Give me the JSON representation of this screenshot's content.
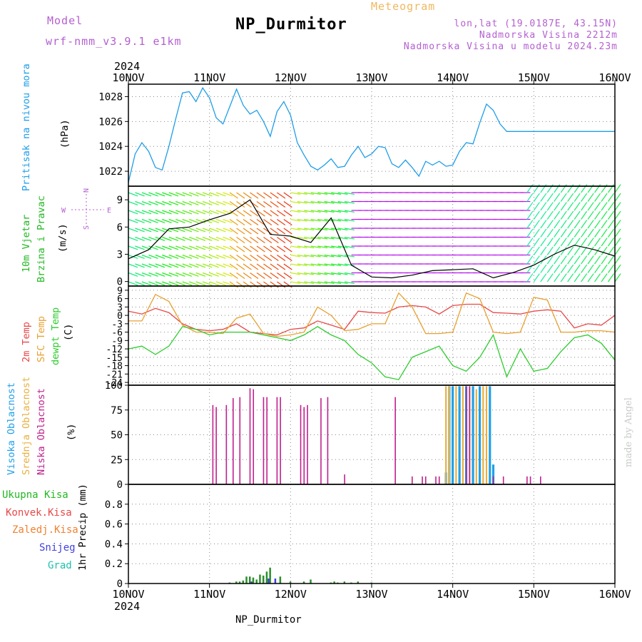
{
  "header": {
    "model_label": "Model",
    "model_name": "wrf-nmm_v3.9.1 e1km",
    "title": "NP_Durmitor",
    "meteogram_label": "Meteogram",
    "coords": "lon,lat (19.0187E, 43.15N)",
    "elevation": "Nadmorska Visina 2212m",
    "model_elevation": "Nadmorska Visina u modelu 2024.23m"
  },
  "footer": {
    "station": "NP_Durmitor",
    "credit": "made by Angel"
  },
  "colors": {
    "pressure": "#1e9ee8",
    "wind_label": "#22b822",
    "temp2m": "#e84848",
    "sfc_temp": "#e8a030",
    "dewpt": "#2ccc2c",
    "high_cloud": "#20a0e8",
    "mid_cloud": "#e8b040",
    "low_cloud": "#c0208e",
    "total_precip": "#2a8f2a",
    "conv_precip": "#e84848",
    "freezing": "#f08030",
    "snow": "#4040e0",
    "graupel": "#20c0b0",
    "purple": "#b45fd0"
  },
  "chart_data": [
    {
      "panel": "pressure",
      "type": "line",
      "ylabel_left": "Pritisak na nivou mora",
      "ylabel_unit": "(hPa)",
      "x_axis_days": [
        "10NOV",
        "11NOV",
        "12NOV",
        "13NOV",
        "14NOV",
        "15NOV",
        "16NOV"
      ],
      "year": "2024",
      "ylim": [
        1020.8,
        1029.0
      ],
      "yticks": [
        "1022",
        "1024",
        "1026",
        "1028"
      ],
      "x_hours": [
        0,
        2,
        4,
        6,
        8,
        10,
        12,
        14,
        16,
        18,
        20,
        22,
        24,
        26,
        28,
        30,
        32,
        34,
        36,
        38,
        40,
        42,
        44,
        46,
        48,
        50,
        52,
        54,
        56,
        58,
        60,
        62,
        64,
        66,
        68,
        70,
        72,
        74,
        76,
        78,
        80,
        82,
        84,
        86,
        88,
        90,
        92,
        94,
        96,
        98,
        100,
        102,
        104,
        106,
        108,
        110,
        112,
        114,
        116,
        118,
        120,
        122,
        124,
        126,
        128,
        130,
        132,
        134,
        136,
        138,
        140,
        142,
        144
      ],
      "series": [
        {
          "name": "Pritisak na nivou mora",
          "values": [
            1021.1,
            1023.4,
            1024.3,
            1023.6,
            1022.3,
            1022.1,
            1024.0,
            1026.2,
            1028.3,
            1028.4,
            1027.6,
            1028.7,
            1027.9,
            1026.3,
            1025.8,
            1027.2,
            1028.6,
            1027.3,
            1026.6,
            1026.9,
            1026.0,
            1024.8,
            1026.8,
            1027.6,
            1026.5,
            1024.3,
            1023.3,
            1022.4,
            1022.1,
            1022.5,
            1023.0,
            1022.3,
            1022.4,
            1023.3,
            1024.0,
            1023.1,
            1023.4,
            1024.0,
            1023.9,
            1022.6,
            1022.3,
            1022.9,
            1022.3,
            1021.6,
            1022.8,
            1022.5,
            1022.8,
            1022.4,
            1022.5,
            1023.6,
            1024.3,
            1024.2,
            1025.9,
            1027.4,
            1026.9,
            1025.8,
            1025.2,
            1025.2,
            1025.2,
            1025.2,
            1025.2,
            1025.2,
            1025.2,
            1025.2,
            1025.2,
            1025.2,
            1025.2,
            1025.2,
            1025.2,
            1025.2,
            1025.2,
            1025.2,
            1025.2
          ]
        }
      ]
    },
    {
      "panel": "wind",
      "type": "line",
      "ylabel_left": "10m Vjetar",
      "ylabel_left2": "Brzina i Pravac",
      "ylabel_unit": "(m/s)",
      "compass": [
        "N",
        "W",
        "E",
        "S"
      ],
      "ylim": [
        -0.5,
        10.5
      ],
      "yticks": [
        "0",
        "3",
        "6",
        "9"
      ],
      "x_hours": [
        0,
        6,
        12,
        18,
        24,
        30,
        36,
        42,
        48,
        54,
        60,
        66,
        72,
        78,
        84,
        90,
        96,
        102,
        108,
        114,
        120,
        126,
        132,
        138,
        144
      ],
      "series": [
        {
          "name": "",
          "values": [
            2.5,
            3.5,
            5.8,
            6.0,
            6.8,
            7.5,
            9.0,
            5.2,
            5.0,
            4.3,
            7.0,
            1.8,
            0.5,
            0.4,
            0.7,
            1.2,
            1.3,
            1.4,
            0.4,
            1.0,
            1.8,
            3.0,
            4.0,
            3.5,
            2.8
          ]
        }
      ]
    },
    {
      "panel": "temperature",
      "type": "line",
      "ylabel_left": [
        "2m Temp",
        "SFC Temp",
        "dewpt Temp"
      ],
      "ylabel_unit": "(C)",
      "ylim": [
        -25,
        10.5
      ],
      "yticks": [
        "9",
        "6",
        "3",
        "0",
        "-3",
        "-6",
        "-9",
        "-12",
        "-15",
        "-18",
        "-21",
        "-24"
      ],
      "x_hours": [
        0,
        4,
        8,
        12,
        16,
        20,
        24,
        28,
        32,
        36,
        40,
        44,
        48,
        52,
        56,
        60,
        64,
        68,
        72,
        76,
        80,
        84,
        88,
        92,
        96,
        100,
        104,
        108,
        112,
        116,
        120,
        124,
        128,
        132,
        136,
        140,
        144
      ],
      "series": [
        {
          "name": "2m Temp",
          "values": [
            1.5,
            0.5,
            2.5,
            1.0,
            -3.0,
            -5.0,
            -5.5,
            -5.0,
            -3.0,
            -6.0,
            -6.5,
            -7.0,
            -5.0,
            -4.5,
            -2.0,
            -3.5,
            -5.0,
            1.5,
            1.0,
            0.8,
            3.0,
            3.5,
            3.0,
            0.5,
            3.5,
            4.0,
            4.0,
            1.0,
            0.8,
            0.5,
            1.5,
            2.0,
            1.5,
            -4.5,
            -3.0,
            -3.5,
            0.0
          ]
        },
        {
          "name": "SFC Temp",
          "values": [
            -2.0,
            -2.0,
            7.5,
            5.0,
            -3.5,
            -6.0,
            -6.0,
            -6.5,
            -1.0,
            0.5,
            -6.5,
            -7.5,
            -7.0,
            -6.0,
            3.0,
            0.0,
            -5.5,
            -5.0,
            -3.0,
            -3.0,
            8.0,
            3.0,
            -6.5,
            -6.5,
            -6.0,
            8.0,
            6.0,
            -6.0,
            -6.5,
            -6.0,
            6.5,
            5.5,
            -6.0,
            -6.0,
            -5.5,
            -5.5,
            -6.0
          ]
        },
        {
          "name": "dewpt Temp",
          "values": [
            -12,
            -11,
            -14,
            -11,
            -4,
            -5,
            -7,
            -6,
            -6,
            -6,
            -7,
            -8,
            -9,
            -7,
            -4,
            -7,
            -9,
            -14,
            -17,
            -22,
            -23,
            -15,
            -13,
            -11,
            -18,
            -20,
            -15,
            -7,
            -22,
            -12,
            -20,
            -19,
            -13,
            -8,
            -7,
            -10,
            -16
          ]
        }
      ]
    },
    {
      "panel": "clouds",
      "type": "bar",
      "ylabel_left": [
        "Visoka Oblacnost",
        "Srednja Oblacnost",
        "Niska Oblacnost"
      ],
      "ylabel_unit": "(%)",
      "ylim": [
        0,
        100
      ],
      "yticks": [
        "0",
        "25",
        "50",
        "75",
        "100"
      ],
      "series": [
        {
          "name": "Niska Oblacnost",
          "x": [
            25,
            26,
            29,
            31,
            33,
            36,
            37,
            40,
            41,
            44,
            45,
            51,
            52,
            53,
            57,
            59,
            64,
            79,
            84,
            87,
            88,
            91,
            92,
            100,
            101,
            108,
            111,
            118,
            119,
            122
          ],
          "values": [
            80,
            78,
            80,
            87,
            88,
            97,
            96,
            88,
            88,
            88,
            88,
            80,
            78,
            80,
            87,
            88,
            10,
            88,
            8,
            8,
            8,
            8,
            8,
            99,
            99,
            8,
            8,
            8,
            8,
            8
          ]
        },
        {
          "name": "Srednja Oblacnost",
          "x": [
            94,
            95,
            97,
            99,
            101,
            103,
            105,
            106
          ],
          "values": [
            99,
            99,
            99,
            99,
            99,
            96,
            99,
            99
          ]
        },
        {
          "name": "Visoka Oblacnost",
          "x": [
            94,
            95,
            96,
            98,
            100,
            102,
            104,
            107,
            108
          ],
          "values": [
            12,
            99,
            99,
            99,
            99,
            99,
            99,
            99,
            20
          ]
        }
      ]
    },
    {
      "panel": "precipitation",
      "type": "bar",
      "ylabel_left": [
        "Ukupna Kisa",
        "Konvek.Kisa",
        "Zaledj.Kisa",
        "Snijeg",
        "Grad"
      ],
      "ylabel_unit": "1hr Precip (mm)",
      "ylim": [
        0,
        1.0
      ],
      "yticks": [
        "0",
        "0.2",
        "0.4",
        "0.6",
        "0.8"
      ],
      "series": [
        {
          "name": "Ukupna Kisa",
          "x": [
            30,
            32,
            33,
            34,
            35,
            36,
            37,
            38,
            39,
            40,
            41,
            42,
            45,
            48,
            52,
            54,
            60,
            61,
            62,
            64,
            66,
            68,
            72
          ],
          "values": [
            0.01,
            0.02,
            0.02,
            0.03,
            0.07,
            0.07,
            0.06,
            0.04,
            0.09,
            0.08,
            0.12,
            0.16,
            0.07,
            0.02,
            0.02,
            0.04,
            0.01,
            0.02,
            0.01,
            0.02,
            0.01,
            0.02,
            0.01
          ]
        },
        {
          "name": "Snijeg",
          "x": [
            36,
            41,
            43
          ],
          "values": [
            0.02,
            0.05,
            0.05
          ]
        }
      ]
    }
  ]
}
